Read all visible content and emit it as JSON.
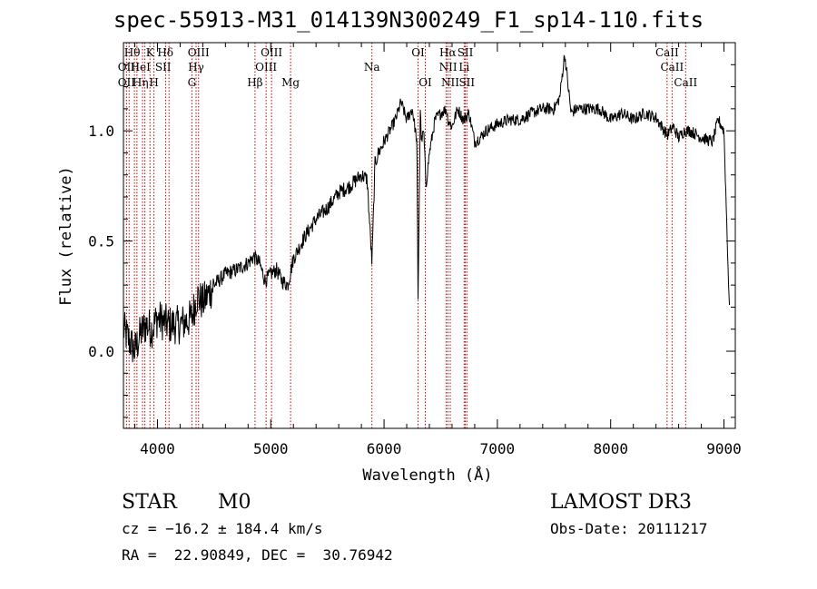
{
  "chart_data": {
    "type": "line",
    "title": "spec-55913-M31_014139N300249_F1_sp14-110.fits",
    "xlabel": "Wavelength (Å)",
    "ylabel": "Flux (relative)",
    "xlim": [
      3700,
      9100
    ],
    "ylim": [
      -0.35,
      1.4
    ],
    "x_ticks": [
      4000,
      5000,
      6000,
      7000,
      8000,
      9000
    ],
    "x_tick_labels": [
      "4000",
      "5000",
      "6000",
      "7000",
      "8000",
      "9000"
    ],
    "y_ticks": [
      0.0,
      0.5,
      1.0
    ],
    "y_tick_labels": [
      "0.0",
      "0.5",
      "1.0"
    ],
    "grid": false,
    "series": [
      {
        "x": [
          3700,
          3750,
          3800,
          3850,
          3900,
          3950,
          4000,
          4100,
          4200,
          4300,
          4350,
          4400,
          4500,
          4600,
          4700,
          4800,
          4850,
          4900,
          4950,
          5000,
          5050,
          5100,
          5150,
          5200,
          5300,
          5400,
          5500,
          5600,
          5700,
          5800,
          5850,
          5893,
          5920,
          5950,
          6000,
          6050,
          6100,
          6150,
          6200,
          6250,
          6290,
          6300,
          6320,
          6330,
          6350,
          6370,
          6400,
          6450,
          6500,
          6550,
          6563,
          6600,
          6650,
          6700,
          6750,
          6800,
          6850,
          6900,
          7000,
          7100,
          7200,
          7300,
          7400,
          7500,
          7550,
          7594,
          7650,
          7700,
          7800,
          7900,
          8000,
          8100,
          8200,
          8300,
          8400,
          8500,
          8550,
          8600,
          8650,
          8700,
          8800,
          8900,
          8950,
          9000,
          9050
        ],
        "values": [
          0.1,
          0.05,
          0.0,
          0.08,
          0.12,
          0.1,
          0.15,
          0.12,
          0.12,
          0.15,
          0.25,
          0.22,
          0.3,
          0.35,
          0.37,
          0.4,
          0.43,
          0.4,
          0.32,
          0.35,
          0.37,
          0.32,
          0.3,
          0.42,
          0.52,
          0.6,
          0.65,
          0.72,
          0.75,
          0.8,
          0.78,
          0.4,
          0.85,
          0.9,
          0.95,
          1.0,
          1.05,
          1.13,
          1.05,
          1.1,
          0.95,
          0.22,
          1.1,
          0.95,
          1.0,
          0.75,
          0.9,
          1.05,
          1.08,
          1.1,
          1.05,
          1.02,
          1.1,
          1.05,
          1.08,
          0.95,
          0.97,
          1.0,
          1.03,
          1.05,
          1.05,
          1.08,
          1.1,
          1.1,
          1.15,
          1.35,
          1.08,
          1.1,
          1.1,
          1.1,
          1.05,
          1.08,
          1.05,
          1.08,
          1.06,
          0.98,
          1.02,
          0.97,
          1.0,
          1.0,
          0.97,
          0.95,
          1.05,
          1.0,
          0.15
        ]
      }
    ],
    "lines": [
      {
        "x": 3727,
        "label": "OII"
      },
      {
        "x": 3750,
        "label": "Hθ"
      },
      {
        "x": 3797,
        "label": "Hη"
      },
      {
        "x": 3819,
        "label": "HeI"
      },
      {
        "x": 3868,
        "label": "HeI"
      },
      {
        "x": 3889,
        "label": "Hη"
      },
      {
        "x": 3934,
        "label": "K"
      },
      {
        "x": 3969,
        "label": "H"
      },
      {
        "x": 4072,
        "label": "SII"
      },
      {
        "x": 4102,
        "label": "Hδ"
      },
      {
        "x": 4304,
        "label": "G"
      },
      {
        "x": 4341,
        "label": "Hγ"
      },
      {
        "x": 4363,
        "label": "OIII"
      },
      {
        "x": 4861,
        "label": "Hβ"
      },
      {
        "x": 4959,
        "label": "OIII"
      },
      {
        "x": 5007,
        "label": "OIII"
      },
      {
        "x": 5175,
        "label": "Mg"
      },
      {
        "x": 5893,
        "label": "Na"
      },
      {
        "x": 6300,
        "label": "OI"
      },
      {
        "x": 6364,
        "label": "OI"
      },
      {
        "x": 6548,
        "label": "NII"
      },
      {
        "x": 6563,
        "label": "Hα"
      },
      {
        "x": 6584,
        "label": "NII"
      },
      {
        "x": 6707,
        "label": "Li"
      },
      {
        "x": 6717,
        "label": "SII"
      },
      {
        "x": 6731,
        "label": "SII"
      },
      {
        "x": 8498,
        "label": "CaII"
      },
      {
        "x": 8542,
        "label": "CaII"
      },
      {
        "x": 8662,
        "label": "CaII"
      }
    ],
    "line_labels": {
      "row1": [
        {
          "x": 3777,
          "text": "Hθ"
        },
        {
          "x": 3934,
          "text": "K"
        },
        {
          "x": 4070,
          "text": "Hδ"
        },
        {
          "x": 4363,
          "text": "OIII"
        },
        {
          "x": 5007,
          "text": "OIII"
        },
        {
          "x": 6300,
          "text": "OI"
        },
        {
          "x": 6563,
          "text": "Hα"
        },
        {
          "x": 6717,
          "text": "SII"
        },
        {
          "x": 8498,
          "text": "CaII"
        }
      ],
      "row2": [
        {
          "x": 3727,
          "text": "OII"
        },
        {
          "x": 3850,
          "text": "HeI"
        },
        {
          "x": 4050,
          "text": "SII"
        },
        {
          "x": 4341,
          "text": "Hγ"
        },
        {
          "x": 4959,
          "text": "OIII"
        },
        {
          "x": 5893,
          "text": "Na"
        },
        {
          "x": 6565,
          "text": "NII"
        },
        {
          "x": 6707,
          "text": "Li"
        },
        {
          "x": 8542,
          "text": "CaII"
        }
      ],
      "row3": [
        {
          "x": 3727,
          "text": "OII"
        },
        {
          "x": 3850,
          "text": "Hη"
        },
        {
          "x": 3969,
          "text": "H"
        },
        {
          "x": 4304,
          "text": "G"
        },
        {
          "x": 4861,
          "text": "Hβ"
        },
        {
          "x": 5175,
          "text": "Mg"
        },
        {
          "x": 6364,
          "text": "OI"
        },
        {
          "x": 6584,
          "text": "NII"
        },
        {
          "x": 6731,
          "text": "SII"
        },
        {
          "x": 8662,
          "text": "CaII"
        }
      ]
    },
    "colors": {
      "spectrum": "#000000",
      "lines": "#c00000",
      "axes": "#000000"
    }
  },
  "info": {
    "class": "STAR",
    "subclass": "M0",
    "survey": "LAMOST DR3",
    "cz": "cz = −16.2 ± 184.4 km/s",
    "obs_date": "Obs-Date: 20111217",
    "coords": "RA =  22.90849, DEC =  30.76942"
  }
}
